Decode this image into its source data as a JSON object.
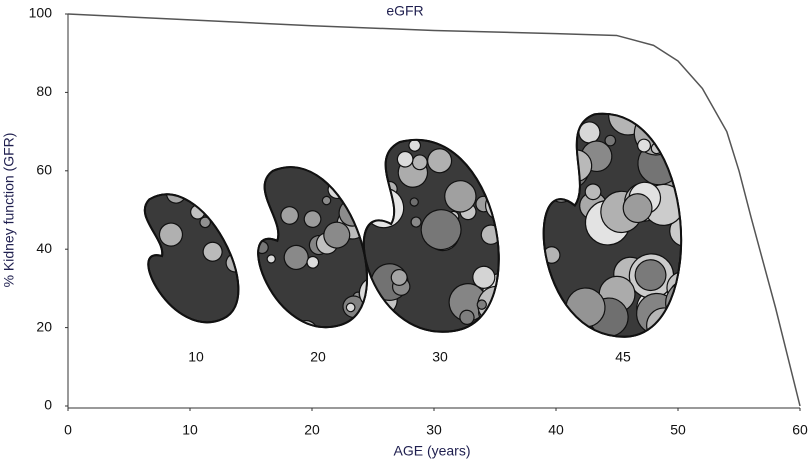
{
  "chart_data": {
    "type": "line",
    "series_label": "eGFR",
    "xlabel": "AGE (years)",
    "ylabel": "% Kidney function (GFR)",
    "x": [
      0,
      10,
      20,
      30,
      40,
      45,
      48,
      50,
      52,
      54,
      55,
      56,
      58,
      60
    ],
    "values": [
      100,
      98.5,
      97,
      95.8,
      95,
      94.5,
      92,
      88,
      81,
      70,
      60,
      48,
      25,
      0
    ],
    "color": "#555555",
    "xlim": [
      0,
      60
    ],
    "ylim": [
      0,
      100
    ],
    "xticks": [
      0,
      10,
      20,
      30,
      40,
      50,
      60
    ],
    "yticks": [
      0,
      20,
      40,
      60,
      80,
      100
    ],
    "kidney_ages": [
      10,
      20,
      30,
      45
    ]
  }
}
